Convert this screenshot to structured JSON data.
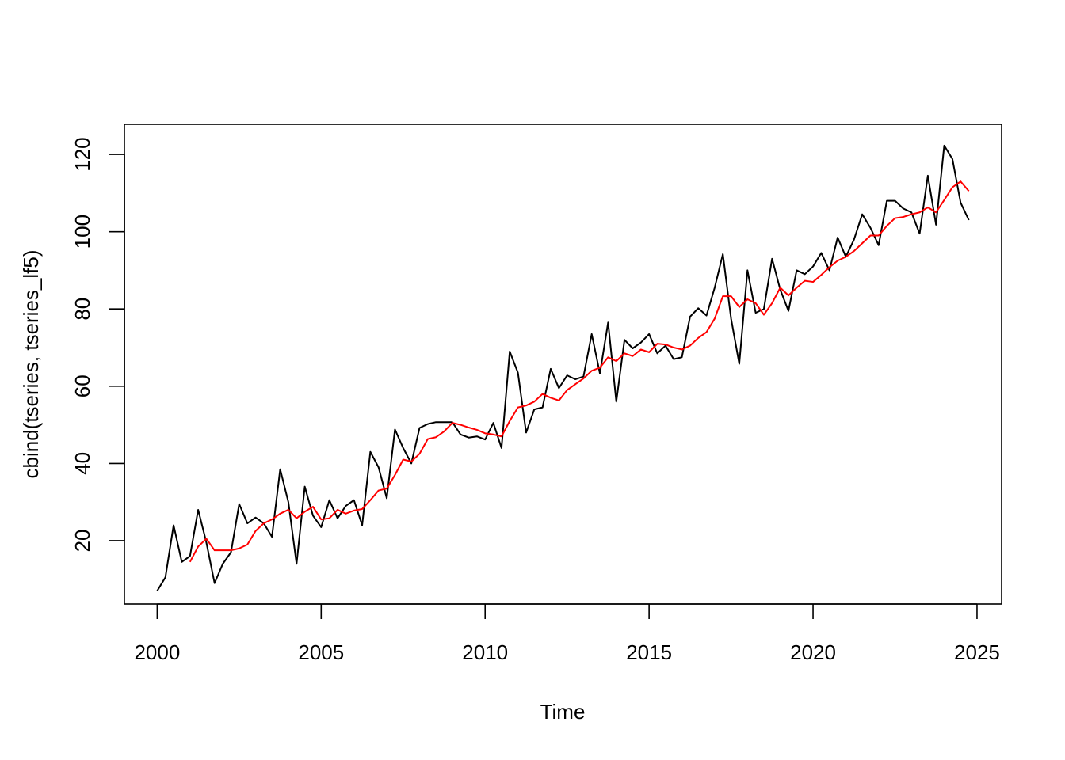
{
  "chart_data": {
    "type": "line",
    "title": "",
    "xlabel": "Time",
    "ylabel": "cbind(tseries, tseries_lf5)",
    "xlim": [
      1999.0,
      2025.75
    ],
    "ylim": [
      3.6,
      127.8
    ],
    "xticks": [
      2000,
      2005,
      2010,
      2015,
      2020,
      2025
    ],
    "yticks": [
      20,
      40,
      60,
      80,
      100,
      120
    ],
    "grid": false,
    "legend": "none",
    "series": [
      {
        "color": "#000000",
        "start": 2000.0,
        "step": 0.25,
        "values": [
          7.0,
          10.5,
          24.0,
          14.5,
          16.0,
          28.0,
          19.5,
          9.0,
          14.0,
          17.0,
          29.5,
          24.5,
          26.0,
          24.5,
          21.0,
          38.5,
          30.0,
          14.0,
          34.0,
          26.5,
          23.5,
          30.5,
          25.8,
          29.0,
          30.5,
          24.0,
          43.0,
          39.0,
          31.0,
          48.8,
          44.0,
          40.0,
          49.2,
          50.2,
          50.7,
          50.7,
          50.7,
          47.5,
          46.7,
          47.0,
          46.2,
          50.5,
          44.0,
          69.0,
          63.5,
          48.0,
          54.0,
          54.5,
          64.5,
          59.5,
          62.8,
          61.8,
          62.5,
          73.5,
          63.3,
          76.5,
          56.0,
          72.0,
          69.8,
          71.3,
          73.5,
          68.5,
          70.5,
          67.0,
          67.5,
          78.0,
          80.2,
          78.3,
          85.5,
          94.2,
          77.5,
          65.8,
          90.0,
          79.0,
          80.0,
          93.0,
          85.0,
          79.5,
          90.0,
          89.0,
          91.0,
          94.5,
          90.0,
          98.5,
          93.5,
          98.0,
          104.5,
          101.0,
          96.5,
          108.0,
          108.0,
          106.0,
          105.0,
          99.5,
          114.5,
          101.8,
          122.3,
          118.8,
          107.5,
          103.0
        ]
      },
      {
        "color": "#ff0000",
        "start": 2001.0,
        "step": 0.25,
        "values": [
          14.5,
          18.5,
          20.5,
          17.5,
          17.5,
          17.5,
          18.0,
          19.0,
          22.5,
          24.5,
          25.5,
          27.0,
          28.0,
          25.8,
          27.5,
          28.8,
          25.5,
          25.8,
          28.0,
          27.0,
          27.8,
          28.2,
          30.5,
          33.0,
          33.5,
          37.0,
          41.0,
          40.5,
          42.5,
          46.3,
          46.8,
          48.3,
          50.5,
          50.0,
          49.3,
          48.7,
          47.8,
          47.5,
          47.0,
          51.0,
          54.5,
          55.0,
          56.0,
          58.0,
          57.0,
          56.3,
          59.0,
          60.5,
          62.0,
          64.0,
          64.8,
          67.5,
          66.5,
          68.5,
          67.8,
          69.5,
          68.8,
          71.0,
          70.8,
          70.0,
          69.5,
          70.5,
          72.5,
          74.0,
          77.5,
          83.3,
          83.3,
          80.5,
          82.5,
          81.5,
          78.5,
          81.5,
          85.5,
          83.5,
          85.5,
          87.3,
          87.0,
          88.8,
          90.8,
          92.5,
          93.5,
          95.0,
          97.0,
          99.0,
          99.0,
          101.5,
          103.5,
          103.8,
          104.5,
          105.0,
          106.3,
          105.0,
          108.2,
          111.5,
          113.0,
          110.5
        ]
      }
    ]
  }
}
